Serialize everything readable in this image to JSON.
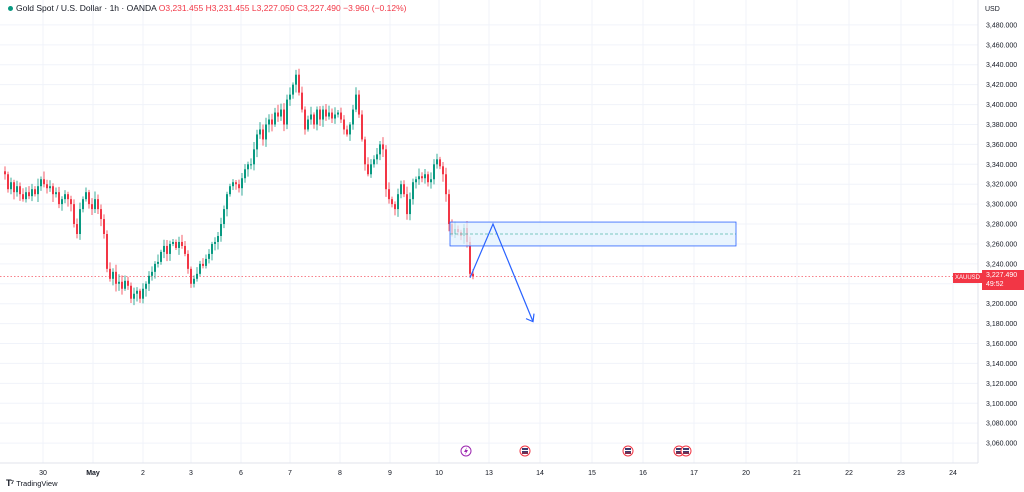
{
  "header": {
    "symbol": "Gold Spot / U.S. Dollar",
    "interval": "1h",
    "source": "OANDA",
    "open": "O3,231.455",
    "high": "H3,231.455",
    "low": "L3,227.050",
    "close": "C3,227.490",
    "change": "−3.960 (−0.12%)"
  },
  "currency": "USD",
  "price_tag": {
    "symbol": "XAUUSD",
    "price": "3,227.490",
    "countdown": "49:52"
  },
  "brand": {
    "name": "TradingView"
  },
  "colors": {
    "up": "#089981",
    "down": "#f23645",
    "zone_border": "#2962ff",
    "zone_fill": "#e3f2fd",
    "arrow": "#2962ff"
  },
  "chart_data": {
    "type": "candlestick",
    "instrument": "XAUUSD",
    "ylim": [
      3040,
      3500
    ],
    "y_ticks": [
      3060,
      3080,
      3100,
      3120,
      3140,
      3160,
      3180,
      3200,
      3220,
      3240,
      3260,
      3280,
      3300,
      3320,
      3340,
      3360,
      3380,
      3400,
      3420,
      3440,
      3460,
      3480
    ],
    "y_tick_labels": [
      "3,060.000",
      "3,080.000",
      "3,100.000",
      "3,120.000",
      "3,140.000",
      "3,160.000",
      "3,180.000",
      "3,200.000",
      "3,220.000",
      "3,240.000",
      "3,260.000",
      "3,280.000",
      "3,300.000",
      "3,320.000",
      "3,340.000",
      "3,360.000",
      "3,380.000",
      "3,400.000",
      "3,420.000",
      "3,440.000",
      "3,460.000",
      "3,480.000"
    ],
    "x_labels": [
      "30",
      "May",
      "2",
      "3",
      "6",
      "7",
      "8",
      "9",
      "10",
      "13",
      "14",
      "15",
      "16",
      "17",
      "20",
      "21",
      "22",
      "23",
      "24"
    ],
    "x_label_bold": [
      "May"
    ],
    "current_price": 3227.49,
    "price_path": [
      [
        0,
        3330
      ],
      [
        3,
        3315
      ],
      [
        6,
        3322
      ],
      [
        9,
        3312
      ],
      [
        12,
        3318
      ],
      [
        15,
        3310
      ],
      [
        18,
        3305
      ],
      [
        21,
        3312
      ],
      [
        24,
        3308
      ],
      [
        27,
        3315
      ],
      [
        30,
        3310
      ],
      [
        33,
        3318
      ],
      [
        36,
        3325
      ],
      [
        39,
        3320
      ],
      [
        42,
        3316
      ],
      [
        45,
        3318
      ],
      [
        48,
        3310
      ],
      [
        51,
        3312
      ],
      [
        54,
        3300
      ],
      [
        57,
        3305
      ],
      [
        60,
        3310
      ],
      [
        63,
        3305
      ],
      [
        66,
        3300
      ],
      [
        69,
        3280
      ],
      [
        72,
        3270
      ],
      [
        75,
        3295
      ],
      [
        78,
        3305
      ],
      [
        81,
        3312
      ],
      [
        84,
        3300
      ],
      [
        87,
        3295
      ],
      [
        90,
        3305
      ],
      [
        93,
        3295
      ],
      [
        96,
        3285
      ],
      [
        99,
        3270
      ],
      [
        102,
        3235
      ],
      [
        105,
        3225
      ],
      [
        108,
        3232
      ],
      [
        111,
        3220
      ],
      [
        114,
        3222
      ],
      [
        117,
        3215
      ],
      [
        120,
        3223
      ],
      [
        123,
        3218
      ],
      [
        126,
        3205
      ],
      [
        129,
        3210
      ],
      [
        132,
        3213
      ],
      [
        135,
        3205
      ],
      [
        138,
        3215
      ],
      [
        141,
        3220
      ],
      [
        144,
        3228
      ],
      [
        147,
        3232
      ],
      [
        150,
        3240
      ],
      [
        153,
        3242
      ],
      [
        156,
        3252
      ],
      [
        159,
        3258
      ],
      [
        162,
        3250
      ],
      [
        165,
        3260
      ],
      [
        168,
        3262
      ],
      [
        171,
        3256
      ],
      [
        174,
        3262
      ],
      [
        177,
        3258
      ],
      [
        180,
        3250
      ],
      [
        183,
        3235
      ],
      [
        186,
        3220
      ],
      [
        189,
        3225
      ],
      [
        192,
        3230
      ],
      [
        195,
        3240
      ],
      [
        198,
        3238
      ],
      [
        201,
        3245
      ],
      [
        204,
        3250
      ],
      [
        207,
        3260
      ],
      [
        210,
        3262
      ],
      [
        213,
        3268
      ],
      [
        216,
        3280
      ],
      [
        219,
        3295
      ],
      [
        222,
        3310
      ],
      [
        225,
        3318
      ],
      [
        228,
        3322
      ],
      [
        231,
        3320
      ],
      [
        234,
        3316
      ],
      [
        237,
        3326
      ],
      [
        240,
        3335
      ],
      [
        243,
        3340
      ],
      [
        246,
        3340
      ],
      [
        249,
        3355
      ],
      [
        252,
        3370
      ],
      [
        255,
        3375
      ],
      [
        258,
        3365
      ],
      [
        261,
        3380
      ],
      [
        264,
        3385
      ],
      [
        267,
        3380
      ],
      [
        270,
        3392
      ],
      [
        273,
        3388
      ],
      [
        276,
        3395
      ],
      [
        279,
        3380
      ],
      [
        282,
        3405
      ],
      [
        285,
        3410
      ],
      [
        288,
        3420
      ],
      [
        291,
        3430
      ],
      [
        294,
        3412
      ],
      [
        297,
        3395
      ],
      [
        300,
        3375
      ],
      [
        303,
        3385
      ],
      [
        306,
        3390
      ],
      [
        309,
        3380
      ],
      [
        312,
        3395
      ],
      [
        315,
        3385
      ],
      [
        318,
        3395
      ],
      [
        321,
        3388
      ],
      [
        324,
        3392
      ],
      [
        327,
        3386
      ],
      [
        330,
        3390
      ],
      [
        333,
        3392
      ],
      [
        336,
        3385
      ],
      [
        339,
        3375
      ],
      [
        342,
        3370
      ],
      [
        345,
        3380
      ],
      [
        348,
        3395
      ],
      [
        351,
        3410
      ],
      [
        354,
        3390
      ],
      [
        357,
        3365
      ],
      [
        360,
        3340
      ],
      [
        363,
        3330
      ],
      [
        366,
        3340
      ],
      [
        369,
        3345
      ],
      [
        372,
        3350
      ],
      [
        375,
        3360
      ],
      [
        378,
        3355
      ],
      [
        381,
        3315
      ],
      [
        384,
        3305
      ],
      [
        387,
        3300
      ],
      [
        390,
        3295
      ],
      [
        393,
        3310
      ],
      [
        396,
        3320
      ],
      [
        399,
        3310
      ],
      [
        402,
        3290
      ],
      [
        405,
        3305
      ],
      [
        408,
        3322
      ],
      [
        411,
        3325
      ],
      [
        414,
        3328
      ],
      [
        417,
        3326
      ],
      [
        420,
        3330
      ],
      [
        423,
        3322
      ],
      [
        426,
        3325
      ],
      [
        429,
        3340
      ],
      [
        432,
        3345
      ],
      [
        435,
        3338
      ],
      [
        438,
        3330
      ],
      [
        441,
        3310
      ],
      [
        444,
        3280
      ],
      [
        447,
        3270
      ],
      [
        450,
        3275
      ],
      [
        453,
        3272
      ],
      [
        456,
        3268
      ],
      [
        459,
        3276
      ],
      [
        462,
        3262
      ],
      [
        465,
        3230
      ],
      [
        468,
        3227.49
      ]
    ],
    "annotations": {
      "zone": {
        "x_from": 450,
        "x_to": 736,
        "y_top": 3282,
        "y_bottom": 3258,
        "midline": 3270
      },
      "arrow_path": [
        [
          470,
          3226
        ],
        [
          493,
          3280
        ],
        [
          533,
          3182
        ]
      ],
      "event_markers_x": [
        466,
        525,
        628,
        679,
        686
      ]
    }
  }
}
